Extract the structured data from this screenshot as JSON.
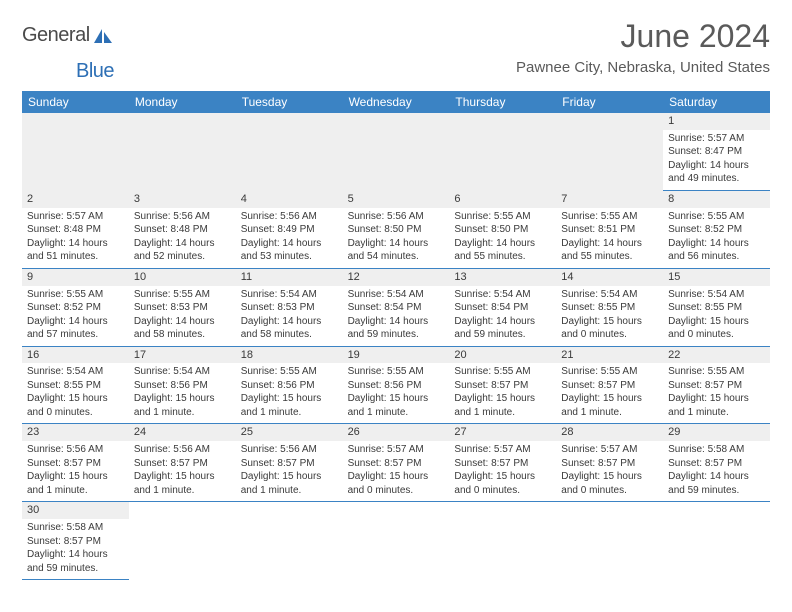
{
  "brand": {
    "part1": "General",
    "part2": "Blue"
  },
  "title": "June 2024",
  "location": "Pawnee City, Nebraska, United States",
  "colors": {
    "header_bg": "#3b83c4",
    "border": "#3b83c4",
    "logo_blue": "#2d6fb5",
    "text_gray": "#5a5a5a",
    "body_text": "#3a3a3a",
    "stripe_bg": "#efefef"
  },
  "weekdays": [
    "Sunday",
    "Monday",
    "Tuesday",
    "Wednesday",
    "Thursday",
    "Friday",
    "Saturday"
  ],
  "weeks": [
    [
      {
        "empty": true
      },
      {
        "empty": true
      },
      {
        "empty": true
      },
      {
        "empty": true
      },
      {
        "empty": true
      },
      {
        "empty": true
      },
      {
        "day": "1",
        "sunrise": "Sunrise: 5:57 AM",
        "sunset": "Sunset: 8:47 PM",
        "daylight1": "Daylight: 14 hours",
        "daylight2": "and 49 minutes."
      }
    ],
    [
      {
        "day": "2",
        "sunrise": "Sunrise: 5:57 AM",
        "sunset": "Sunset: 8:48 PM",
        "daylight1": "Daylight: 14 hours",
        "daylight2": "and 51 minutes."
      },
      {
        "day": "3",
        "sunrise": "Sunrise: 5:56 AM",
        "sunset": "Sunset: 8:48 PM",
        "daylight1": "Daylight: 14 hours",
        "daylight2": "and 52 minutes."
      },
      {
        "day": "4",
        "sunrise": "Sunrise: 5:56 AM",
        "sunset": "Sunset: 8:49 PM",
        "daylight1": "Daylight: 14 hours",
        "daylight2": "and 53 minutes."
      },
      {
        "day": "5",
        "sunrise": "Sunrise: 5:56 AM",
        "sunset": "Sunset: 8:50 PM",
        "daylight1": "Daylight: 14 hours",
        "daylight2": "and 54 minutes."
      },
      {
        "day": "6",
        "sunrise": "Sunrise: 5:55 AM",
        "sunset": "Sunset: 8:50 PM",
        "daylight1": "Daylight: 14 hours",
        "daylight2": "and 55 minutes."
      },
      {
        "day": "7",
        "sunrise": "Sunrise: 5:55 AM",
        "sunset": "Sunset: 8:51 PM",
        "daylight1": "Daylight: 14 hours",
        "daylight2": "and 55 minutes."
      },
      {
        "day": "8",
        "sunrise": "Sunrise: 5:55 AM",
        "sunset": "Sunset: 8:52 PM",
        "daylight1": "Daylight: 14 hours",
        "daylight2": "and 56 minutes."
      }
    ],
    [
      {
        "day": "9",
        "sunrise": "Sunrise: 5:55 AM",
        "sunset": "Sunset: 8:52 PM",
        "daylight1": "Daylight: 14 hours",
        "daylight2": "and 57 minutes."
      },
      {
        "day": "10",
        "sunrise": "Sunrise: 5:55 AM",
        "sunset": "Sunset: 8:53 PM",
        "daylight1": "Daylight: 14 hours",
        "daylight2": "and 58 minutes."
      },
      {
        "day": "11",
        "sunrise": "Sunrise: 5:54 AM",
        "sunset": "Sunset: 8:53 PM",
        "daylight1": "Daylight: 14 hours",
        "daylight2": "and 58 minutes."
      },
      {
        "day": "12",
        "sunrise": "Sunrise: 5:54 AM",
        "sunset": "Sunset: 8:54 PM",
        "daylight1": "Daylight: 14 hours",
        "daylight2": "and 59 minutes."
      },
      {
        "day": "13",
        "sunrise": "Sunrise: 5:54 AM",
        "sunset": "Sunset: 8:54 PM",
        "daylight1": "Daylight: 14 hours",
        "daylight2": "and 59 minutes."
      },
      {
        "day": "14",
        "sunrise": "Sunrise: 5:54 AM",
        "sunset": "Sunset: 8:55 PM",
        "daylight1": "Daylight: 15 hours",
        "daylight2": "and 0 minutes."
      },
      {
        "day": "15",
        "sunrise": "Sunrise: 5:54 AM",
        "sunset": "Sunset: 8:55 PM",
        "daylight1": "Daylight: 15 hours",
        "daylight2": "and 0 minutes."
      }
    ],
    [
      {
        "day": "16",
        "sunrise": "Sunrise: 5:54 AM",
        "sunset": "Sunset: 8:55 PM",
        "daylight1": "Daylight: 15 hours",
        "daylight2": "and 0 minutes."
      },
      {
        "day": "17",
        "sunrise": "Sunrise: 5:54 AM",
        "sunset": "Sunset: 8:56 PM",
        "daylight1": "Daylight: 15 hours",
        "daylight2": "and 1 minute."
      },
      {
        "day": "18",
        "sunrise": "Sunrise: 5:55 AM",
        "sunset": "Sunset: 8:56 PM",
        "daylight1": "Daylight: 15 hours",
        "daylight2": "and 1 minute."
      },
      {
        "day": "19",
        "sunrise": "Sunrise: 5:55 AM",
        "sunset": "Sunset: 8:56 PM",
        "daylight1": "Daylight: 15 hours",
        "daylight2": "and 1 minute."
      },
      {
        "day": "20",
        "sunrise": "Sunrise: 5:55 AM",
        "sunset": "Sunset: 8:57 PM",
        "daylight1": "Daylight: 15 hours",
        "daylight2": "and 1 minute."
      },
      {
        "day": "21",
        "sunrise": "Sunrise: 5:55 AM",
        "sunset": "Sunset: 8:57 PM",
        "daylight1": "Daylight: 15 hours",
        "daylight2": "and 1 minute."
      },
      {
        "day": "22",
        "sunrise": "Sunrise: 5:55 AM",
        "sunset": "Sunset: 8:57 PM",
        "daylight1": "Daylight: 15 hours",
        "daylight2": "and 1 minute."
      }
    ],
    [
      {
        "day": "23",
        "sunrise": "Sunrise: 5:56 AM",
        "sunset": "Sunset: 8:57 PM",
        "daylight1": "Daylight: 15 hours",
        "daylight2": "and 1 minute."
      },
      {
        "day": "24",
        "sunrise": "Sunrise: 5:56 AM",
        "sunset": "Sunset: 8:57 PM",
        "daylight1": "Daylight: 15 hours",
        "daylight2": "and 1 minute."
      },
      {
        "day": "25",
        "sunrise": "Sunrise: 5:56 AM",
        "sunset": "Sunset: 8:57 PM",
        "daylight1": "Daylight: 15 hours",
        "daylight2": "and 1 minute."
      },
      {
        "day": "26",
        "sunrise": "Sunrise: 5:57 AM",
        "sunset": "Sunset: 8:57 PM",
        "daylight1": "Daylight: 15 hours",
        "daylight2": "and 0 minutes."
      },
      {
        "day": "27",
        "sunrise": "Sunrise: 5:57 AM",
        "sunset": "Sunset: 8:57 PM",
        "daylight1": "Daylight: 15 hours",
        "daylight2": "and 0 minutes."
      },
      {
        "day": "28",
        "sunrise": "Sunrise: 5:57 AM",
        "sunset": "Sunset: 8:57 PM",
        "daylight1": "Daylight: 15 hours",
        "daylight2": "and 0 minutes."
      },
      {
        "day": "29",
        "sunrise": "Sunrise: 5:58 AM",
        "sunset": "Sunset: 8:57 PM",
        "daylight1": "Daylight: 14 hours",
        "daylight2": "and 59 minutes."
      }
    ],
    [
      {
        "day": "30",
        "sunrise": "Sunrise: 5:58 AM",
        "sunset": "Sunset: 8:57 PM",
        "daylight1": "Daylight: 14 hours",
        "daylight2": "and 59 minutes."
      },
      {
        "empty": true,
        "trailing": true
      },
      {
        "empty": true,
        "trailing": true
      },
      {
        "empty": true,
        "trailing": true
      },
      {
        "empty": true,
        "trailing": true
      },
      {
        "empty": true,
        "trailing": true
      },
      {
        "empty": true,
        "trailing": true
      }
    ]
  ]
}
